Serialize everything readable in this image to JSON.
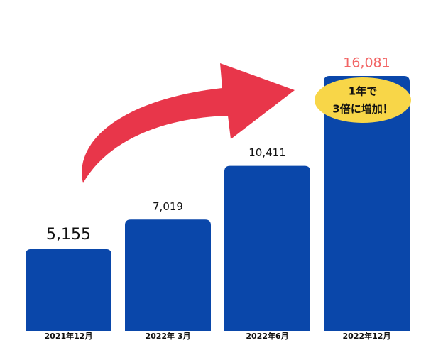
{
  "chart_data": {
    "type": "bar",
    "categories": [
      "2021年12月",
      "2022年 3月",
      "2022年6月",
      "2022年12月"
    ],
    "values": [
      5155,
      7019,
      10411,
      16081
    ],
    "value_labels": [
      "5,155",
      "7,019",
      "10,411",
      "16,081"
    ],
    "color": "#0a47aa",
    "highlight_color": "#f26565",
    "annotations": [
      "1年で",
      "3倍に増加！"
    ]
  }
}
